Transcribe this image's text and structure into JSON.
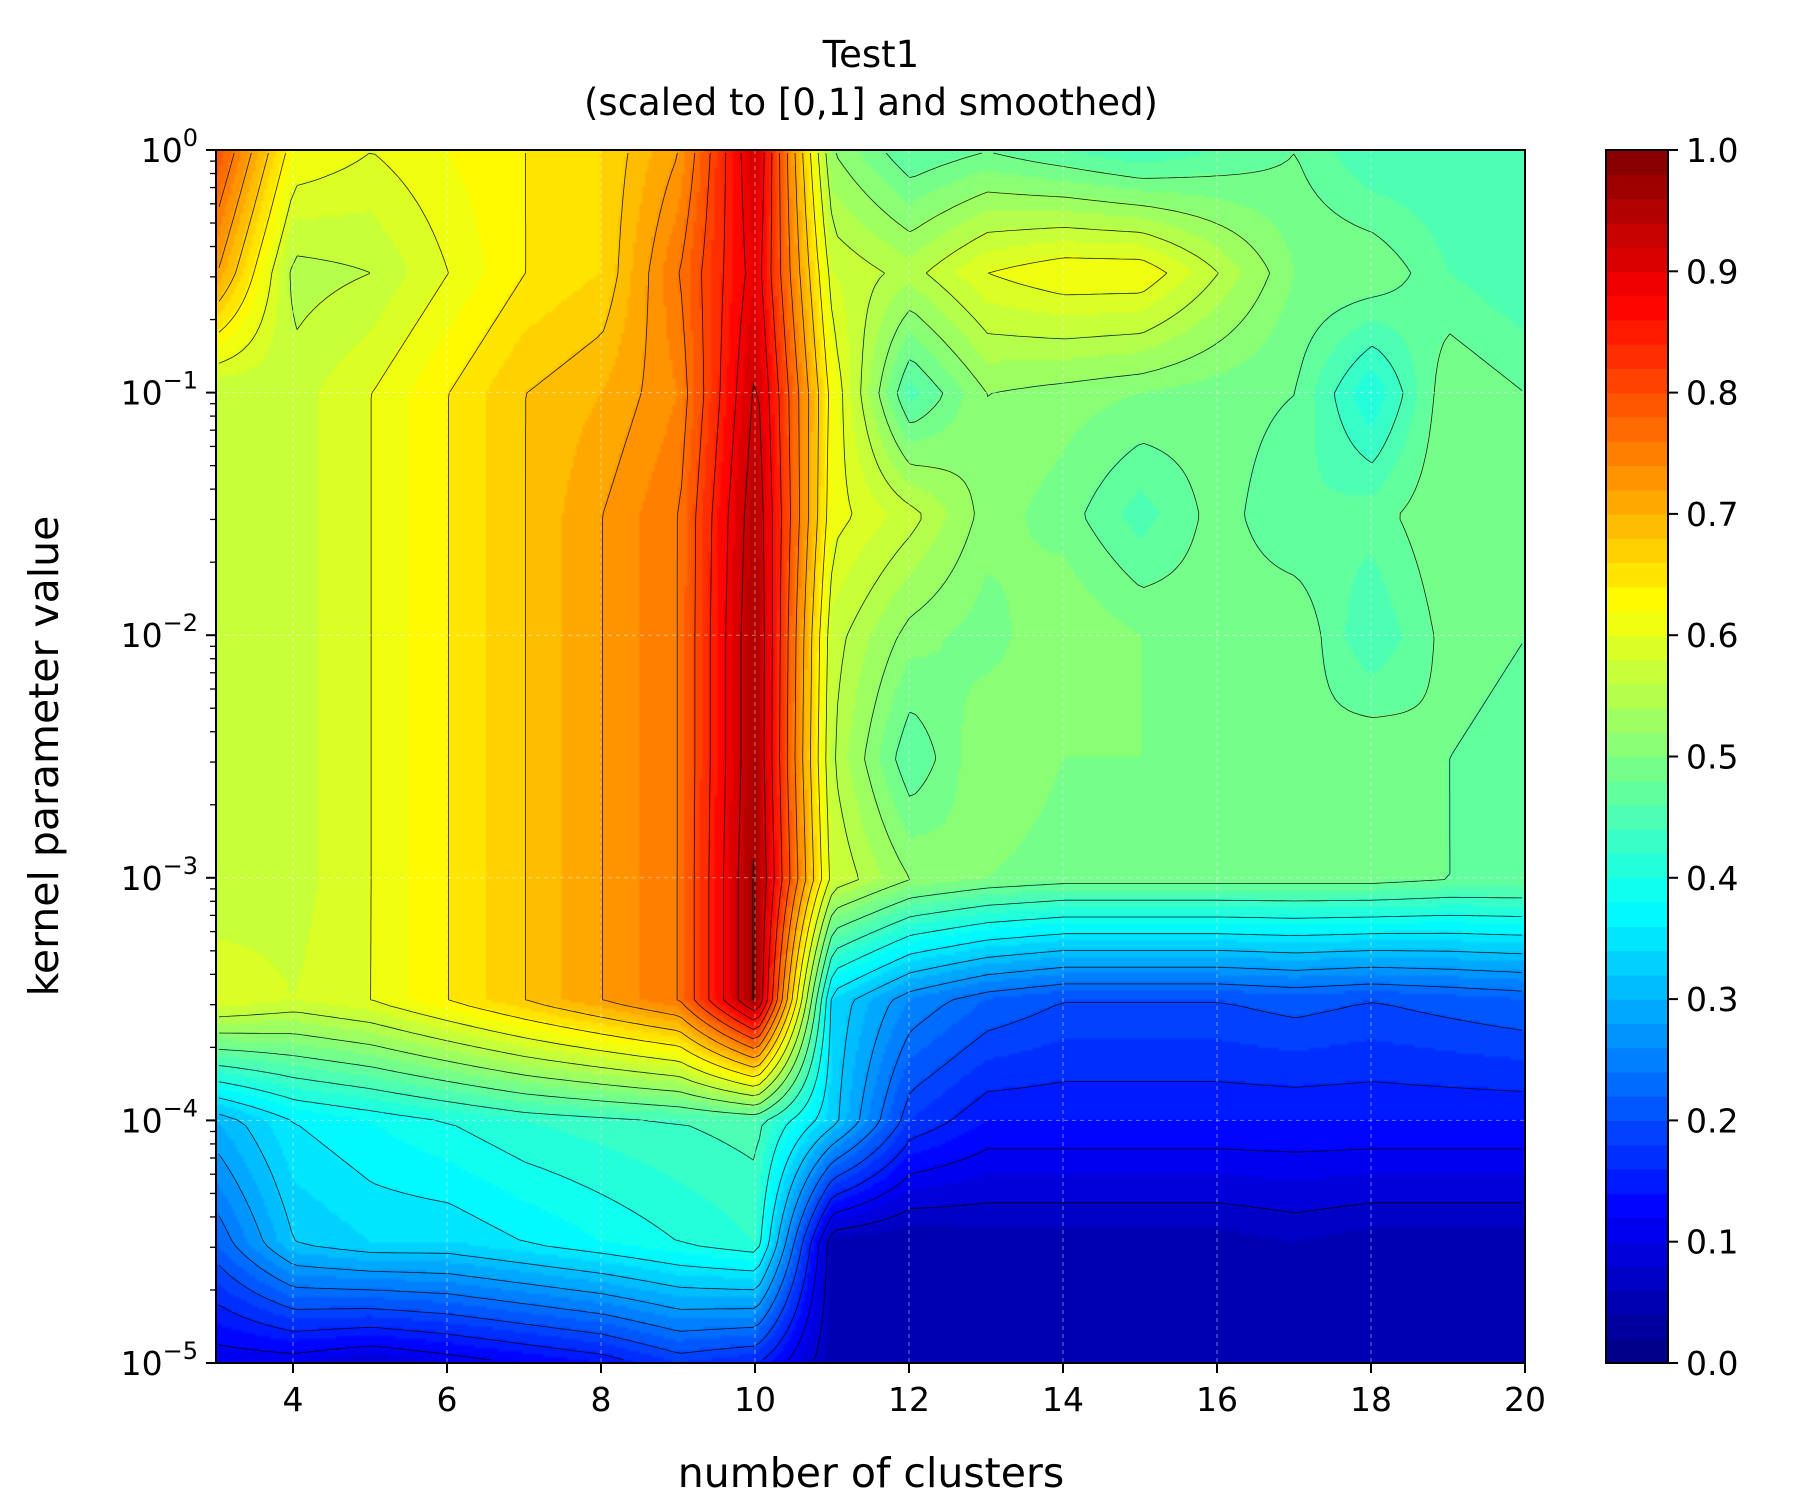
{
  "chart_data": {
    "type": "heatmap",
    "title": "Test1",
    "subtitle": "(scaled to [0,1] and smoothed)",
    "xlabel": "number of clusters",
    "ylabel": "kernel parameter value",
    "xlim": [
      3,
      20
    ],
    "ylim": [
      1e-05,
      1
    ],
    "yscale": "log",
    "x_ticks": [
      4,
      6,
      8,
      10,
      12,
      14,
      16,
      18,
      20
    ],
    "x_tick_labels": [
      "4",
      "6",
      "8",
      "10",
      "12",
      "14",
      "16",
      "18",
      "20"
    ],
    "y_ticks": [
      1e-05,
      0.0001,
      0.001,
      0.01,
      0.1,
      1
    ],
    "y_tick_labels": [
      {
        "base": "10",
        "exp": "−5"
      },
      {
        "base": "10",
        "exp": "−4"
      },
      {
        "base": "10",
        "exp": "−3"
      },
      {
        "base": "10",
        "exp": "−2"
      },
      {
        "base": "10",
        "exp": "−1"
      },
      {
        "base": "10",
        "exp": "0"
      }
    ],
    "grid": true,
    "colormap": "jet",
    "contour_lines": true,
    "colorbar": {
      "placement": "right",
      "range": [
        0,
        1
      ],
      "ticks": [
        0.0,
        0.1,
        0.2,
        0.3,
        0.4,
        0.5,
        0.6,
        0.7,
        0.8,
        0.9,
        1.0
      ],
      "tick_labels": [
        "0.0",
        "0.1",
        "0.2",
        "0.3",
        "0.4",
        "0.5",
        "0.6",
        "0.7",
        "0.8",
        "0.9",
        "1.0"
      ]
    },
    "x": [
      3,
      4,
      5,
      6,
      7,
      8,
      9,
      10,
      11,
      12,
      13,
      14,
      15,
      16,
      17,
      18,
      19,
      20
    ],
    "y": [
      1e-05,
      3.16e-05,
      0.0001,
      0.000316,
      0.001,
      0.00316,
      0.01,
      0.0316,
      0.1,
      0.316,
      1
    ],
    "z": [
      [
        0.1,
        0.1,
        0.08,
        0.1,
        0.12,
        0.14,
        0.18,
        0.16,
        0.05,
        0.05,
        0.05,
        0.05,
        0.05,
        0.05,
        0.05,
        0.05,
        0.05,
        0.05
      ],
      [
        0.22,
        0.32,
        0.34,
        0.34,
        0.36,
        0.38,
        0.4,
        0.42,
        0.05,
        0.04,
        0.05,
        0.05,
        0.05,
        0.05,
        0.06,
        0.05,
        0.05,
        0.05
      ],
      [
        0.3,
        0.36,
        0.38,
        0.4,
        0.42,
        0.43,
        0.44,
        0.45,
        0.33,
        0.18,
        0.14,
        0.14,
        0.14,
        0.14,
        0.14,
        0.14,
        0.14,
        0.14
      ],
      [
        0.6,
        0.58,
        0.6,
        0.64,
        0.68,
        0.72,
        0.76,
        0.97,
        0.34,
        0.26,
        0.22,
        0.2,
        0.2,
        0.2,
        0.21,
        0.2,
        0.21,
        0.22
      ],
      [
        0.56,
        0.57,
        0.6,
        0.64,
        0.68,
        0.72,
        0.76,
        0.97,
        0.58,
        0.52,
        0.5,
        0.49,
        0.49,
        0.49,
        0.49,
        0.49,
        0.48,
        0.48
      ],
      [
        0.56,
        0.57,
        0.6,
        0.64,
        0.68,
        0.72,
        0.76,
        0.96,
        0.56,
        0.46,
        0.52,
        0.5,
        0.5,
        0.5,
        0.48,
        0.5,
        0.48,
        0.47
      ],
      [
        0.56,
        0.57,
        0.6,
        0.64,
        0.68,
        0.72,
        0.76,
        0.96,
        0.57,
        0.51,
        0.49,
        0.52,
        0.5,
        0.49,
        0.5,
        0.44,
        0.49,
        0.48
      ],
      [
        0.56,
        0.57,
        0.6,
        0.64,
        0.68,
        0.72,
        0.76,
        0.95,
        0.61,
        0.57,
        0.51,
        0.49,
        0.45,
        0.49,
        0.46,
        0.47,
        0.5,
        0.49
      ],
      [
        0.56,
        0.57,
        0.6,
        0.64,
        0.68,
        0.7,
        0.74,
        0.93,
        0.62,
        0.45,
        0.52,
        0.51,
        0.5,
        0.49,
        0.48,
        0.4,
        0.5,
        0.48
      ],
      [
        0.72,
        0.55,
        0.56,
        0.6,
        0.64,
        0.66,
        0.76,
        0.9,
        0.58,
        0.55,
        0.6,
        0.62,
        0.62,
        0.56,
        0.5,
        0.5,
        0.46,
        0.44
      ],
      [
        0.8,
        0.62,
        0.6,
        0.62,
        0.64,
        0.66,
        0.72,
        0.92,
        0.52,
        0.46,
        0.48,
        0.46,
        0.44,
        0.46,
        0.48,
        0.44,
        0.44,
        0.44
      ]
    ]
  }
}
